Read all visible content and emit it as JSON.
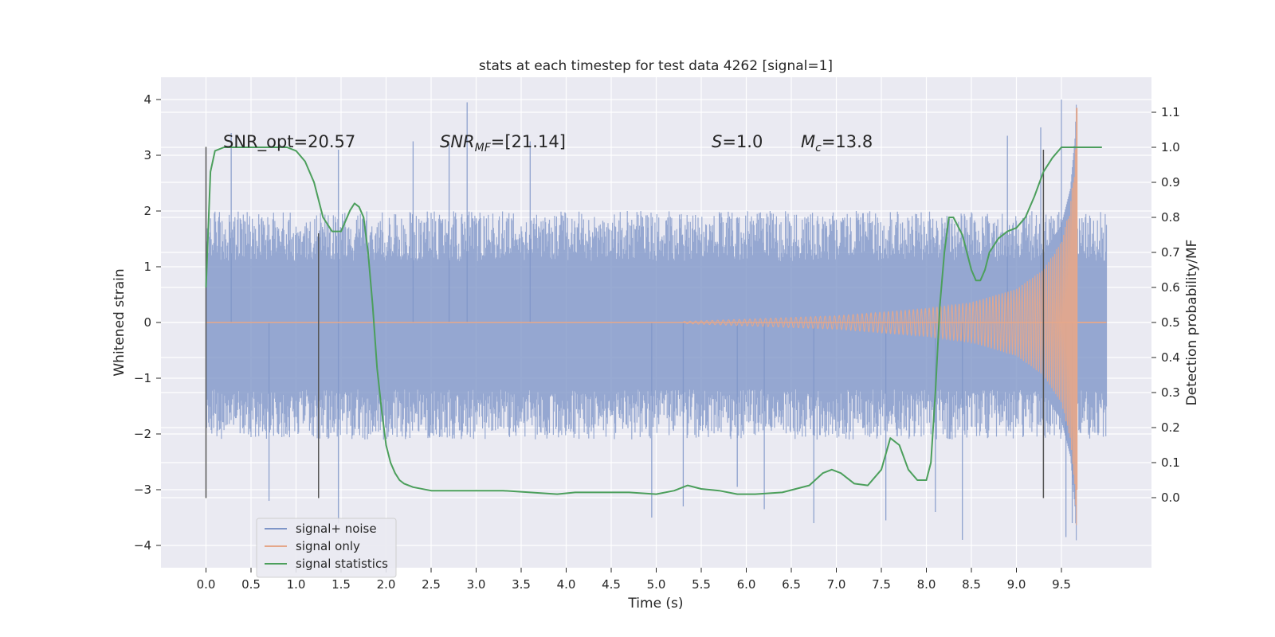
{
  "chart_data": {
    "type": "line",
    "title": "stats at each timestep for test data 4262 [signal=1]",
    "xlabel": "Time (s)",
    "ylabel_left": "Whitened strain",
    "ylabel_right": "Detection probability/MF",
    "xlim": [
      -0.5,
      10.5
    ],
    "ylim_left": [
      -4.4,
      4.4
    ],
    "ylim_right": [
      -0.2,
      1.2
    ],
    "xticks": [
      0.0,
      0.5,
      1.0,
      1.5,
      2.0,
      2.5,
      3.0,
      3.5,
      4.0,
      4.5,
      5.0,
      5.5,
      6.0,
      6.5,
      7.0,
      7.5,
      8.0,
      8.5,
      9.0,
      9.5
    ],
    "xtick_labels": [
      "0.0",
      "0.5",
      "1.0",
      "1.5",
      "2.0",
      "2.5",
      "3.0",
      "3.5",
      "4.0",
      "4.5",
      "5.0",
      "5.5",
      "6.0",
      "6.5",
      "7.0",
      "7.5",
      "8.0",
      "8.5",
      "9.0",
      "9.5"
    ],
    "yticks_left": [
      -4,
      -3,
      -2,
      -1,
      0,
      1,
      2,
      3,
      4
    ],
    "ytick_labels_left": [
      "−4",
      "−3",
      "−2",
      "−1",
      "0",
      "1",
      "2",
      "3",
      "4"
    ],
    "yticks_right": [
      0.0,
      0.1,
      0.2,
      0.3,
      0.4,
      0.5,
      0.6,
      0.7,
      0.8,
      0.9,
      1.0,
      1.1
    ],
    "ytick_labels_right": [
      "0.0",
      "0.1",
      "0.2",
      "0.3",
      "0.4",
      "0.5",
      "0.6",
      "0.7",
      "0.8",
      "0.9",
      "1.0",
      "1.1"
    ],
    "grid": true,
    "legend_position": "lower-left",
    "annotations": {
      "snr_opt": "SNR_opt=20.57",
      "snr_mf_base": "SNR",
      "snr_mf_sub": "MF",
      "snr_mf_value": "=[21.14]",
      "s_italic": "S",
      "s_value": "=1.0",
      "mc_base": "M",
      "mc_sub": "c",
      "mc_value": "=13.8"
    },
    "vertical_lines": [
      {
        "x": 0.0,
        "y_min": -3.15,
        "y_max": 3.15
      },
      {
        "x": 1.25,
        "y_min": -3.15,
        "y_max": 1.6
      },
      {
        "x": 9.3,
        "y_min": -3.15,
        "y_max": 3.1
      }
    ],
    "noise_series": {
      "name": "signal+ noise",
      "color": "#7f96c8",
      "x_range": [
        0.0,
        10.0
      ],
      "typical_envelope": [
        -1.5,
        2.0
      ],
      "max": 4.0,
      "min": -3.9,
      "spikes": [
        {
          "x": 0.28,
          "y": 3.4
        },
        {
          "x": 1.47,
          "y": -3.6
        },
        {
          "x": 1.47,
          "y": 3.1
        },
        {
          "x": 2.3,
          "y": 3.25
        },
        {
          "x": 2.9,
          "y": 3.95
        },
        {
          "x": 2.7,
          "y": 3.2
        },
        {
          "x": 3.6,
          "y": 3.25
        },
        {
          "x": 4.95,
          "y": -3.5
        },
        {
          "x": 5.3,
          "y": -3.3
        },
        {
          "x": 6.2,
          "y": -3.35
        },
        {
          "x": 6.75,
          "y": -3.6
        },
        {
          "x": 7.55,
          "y": -3.55
        },
        {
          "x": 8.1,
          "y": -3.4
        },
        {
          "x": 8.4,
          "y": -3.9
        },
        {
          "x": 9.27,
          "y": 3.5
        },
        {
          "x": 9.5,
          "y": 4.0
        },
        {
          "x": 9.55,
          "y": -3.85
        },
        {
          "x": 9.62,
          "y": -3.6
        },
        {
          "x": 8.9,
          "y": 3.35
        },
        {
          "x": 5.9,
          "y": -2.95
        },
        {
          "x": 0.7,
          "y": -3.2
        }
      ]
    },
    "signal_series": {
      "name": "signal only",
      "color": "#e5a78a",
      "start": 5.3,
      "merger": 9.67,
      "envelope": [
        {
          "x": 5.3,
          "y": 0.02
        },
        {
          "x": 6.0,
          "y": 0.06
        },
        {
          "x": 7.0,
          "y": 0.12
        },
        {
          "x": 8.0,
          "y": 0.25
        },
        {
          "x": 8.5,
          "y": 0.36
        },
        {
          "x": 9.0,
          "y": 0.6
        },
        {
          "x": 9.3,
          "y": 0.95
        },
        {
          "x": 9.5,
          "y": 1.45
        },
        {
          "x": 9.6,
          "y": 2.1
        },
        {
          "x": 9.65,
          "y": 3.0
        },
        {
          "x": 9.67,
          "y": 3.85
        }
      ],
      "ringdown_min": -3.0
    },
    "stat_series": {
      "name": "signal statistics",
      "color": "#4c9f5c",
      "x": [
        0.0,
        0.05,
        0.1,
        0.2,
        0.3,
        0.5,
        0.7,
        0.9,
        1.0,
        1.1,
        1.2,
        1.3,
        1.4,
        1.5,
        1.6,
        1.65,
        1.7,
        1.75,
        1.8,
        1.85,
        1.9,
        1.95,
        2.0,
        2.05,
        2.1,
        2.15,
        2.2,
        2.3,
        2.5,
        2.8,
        3.0,
        3.3,
        3.6,
        3.9,
        4.1,
        4.4,
        4.7,
        5.0,
        5.2,
        5.35,
        5.5,
        5.7,
        5.9,
        6.1,
        6.4,
        6.7,
        6.85,
        6.95,
        7.05,
        7.2,
        7.35,
        7.5,
        7.6,
        7.7,
        7.8,
        7.9,
        8.0,
        8.05,
        8.1,
        8.15,
        8.2,
        8.25,
        8.3,
        8.4,
        8.5,
        8.55,
        8.6,
        8.65,
        8.7,
        8.8,
        8.9,
        9.0,
        9.1,
        9.2,
        9.3,
        9.4,
        9.5,
        9.6,
        9.7,
        9.8,
        9.9,
        9.95
      ],
      "y": [
        0.6,
        0.93,
        0.99,
        1.0,
        1.0,
        1.0,
        1.0,
        1.0,
        0.99,
        0.96,
        0.9,
        0.8,
        0.76,
        0.76,
        0.82,
        0.84,
        0.83,
        0.8,
        0.7,
        0.55,
        0.37,
        0.25,
        0.15,
        0.1,
        0.07,
        0.05,
        0.04,
        0.03,
        0.02,
        0.02,
        0.02,
        0.02,
        0.015,
        0.01,
        0.015,
        0.015,
        0.015,
        0.01,
        0.02,
        0.035,
        0.025,
        0.02,
        0.01,
        0.01,
        0.015,
        0.035,
        0.07,
        0.08,
        0.07,
        0.04,
        0.035,
        0.08,
        0.17,
        0.15,
        0.08,
        0.05,
        0.05,
        0.1,
        0.3,
        0.55,
        0.7,
        0.8,
        0.8,
        0.75,
        0.65,
        0.62,
        0.62,
        0.65,
        0.7,
        0.74,
        0.76,
        0.77,
        0.8,
        0.86,
        0.93,
        0.97,
        1.0,
        1.0,
        1.0,
        1.0,
        1.0,
        1.0
      ]
    }
  }
}
